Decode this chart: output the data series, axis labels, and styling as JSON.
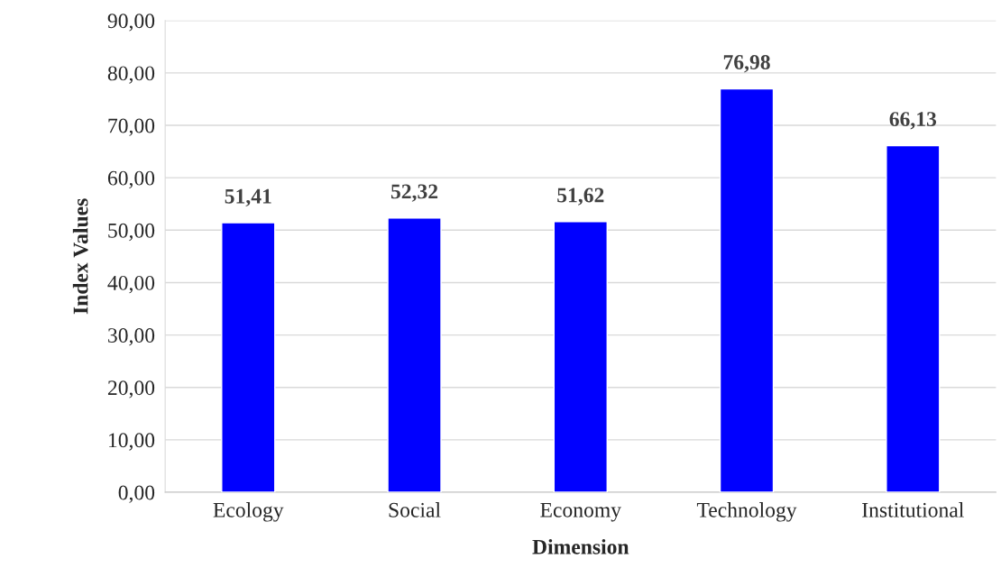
{
  "chart_data": {
    "type": "bar",
    "xlabel": "Dimension",
    "ylabel": "Index Values",
    "categories": [
      "Ecology",
      "Social",
      "Economy",
      "Technology",
      "Institutional"
    ],
    "values": [
      51.41,
      52.32,
      51.62,
      76.98,
      66.13
    ],
    "value_labels": [
      "51,41",
      "52,32",
      "51,62",
      "76,98",
      "66,13"
    ],
    "color": "#0000ff",
    "ylim": [
      0,
      90
    ],
    "yticks": [
      {
        "value": 0,
        "label": "0,00"
      },
      {
        "value": 10,
        "label": "10,00"
      },
      {
        "value": 20,
        "label": "20,00"
      },
      {
        "value": 30,
        "label": "30,00"
      },
      {
        "value": 40,
        "label": "40,00"
      },
      {
        "value": 50,
        "label": "50,00"
      },
      {
        "value": 60,
        "label": "60,00"
      },
      {
        "value": 70,
        "label": "70,00"
      },
      {
        "value": 80,
        "label": "80,00"
      },
      {
        "value": 90,
        "label": "90,00"
      }
    ],
    "grid": "y",
    "legend": false
  }
}
